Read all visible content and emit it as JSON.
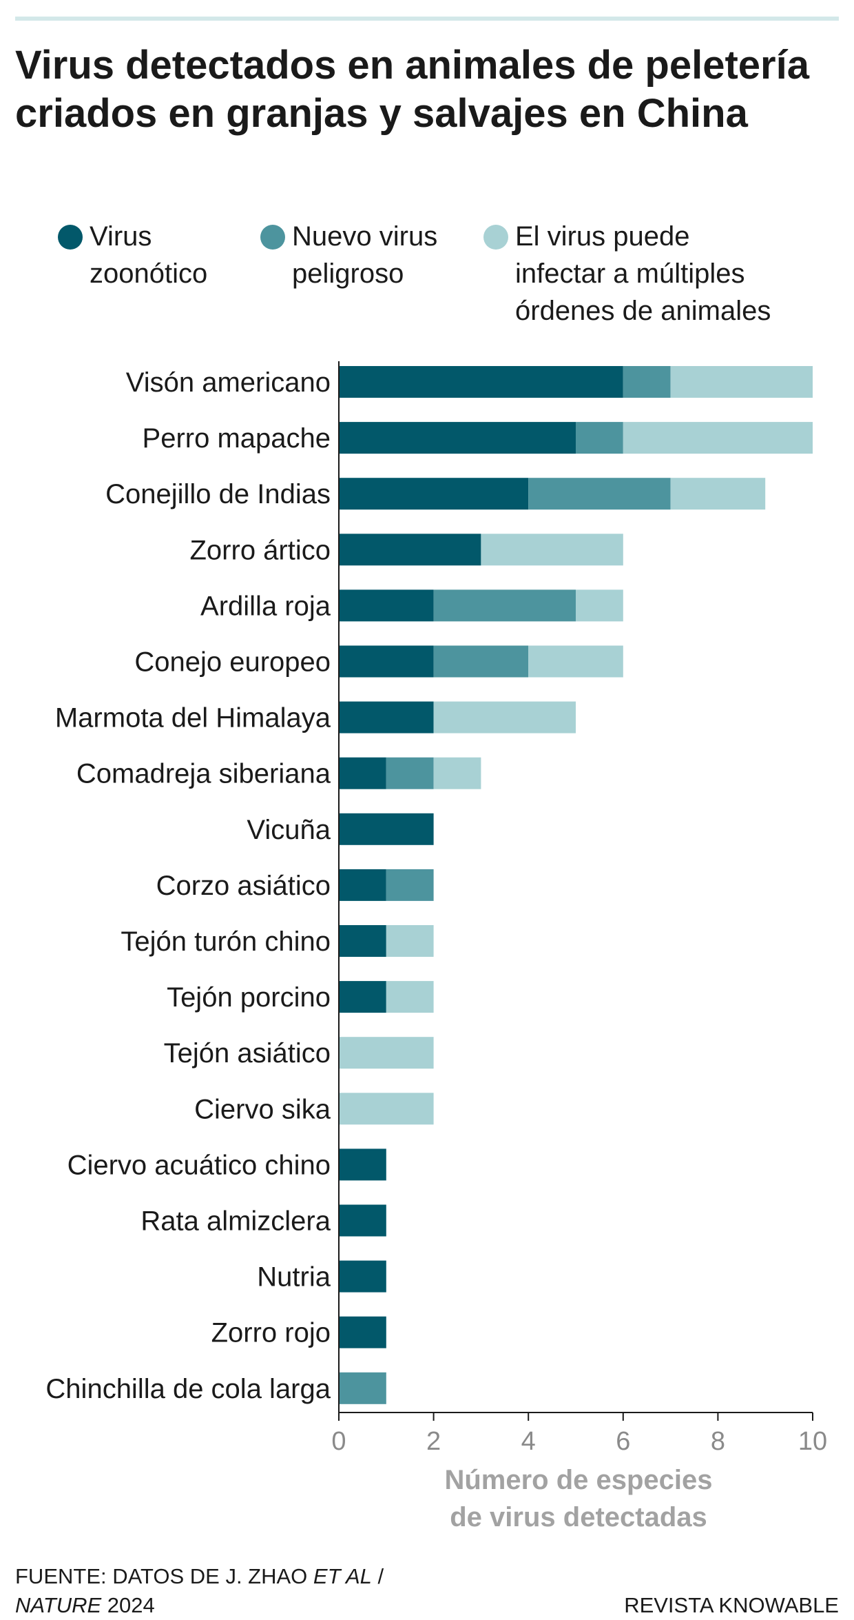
{
  "title": "Virus detectados en animales de peletería criados en granjas y salvajes en China",
  "legend": [
    {
      "label": [
        "Virus",
        "zoonótico"
      ],
      "color": "#02586a"
    },
    {
      "label": [
        "Nuevo virus",
        "peligroso"
      ],
      "color": "#4d949e"
    },
    {
      "label": [
        "El virus puede",
        "infectar a múltiples",
        "órdenes de animales"
      ],
      "color": "#a8d1d4"
    }
  ],
  "footer": {
    "source_prefix": "FUENTE: DATOS DE J. ZHAO ",
    "source_italic_1": "ET AL",
    "source_sep": " /",
    "source_italic_2": "NATURE",
    "source_year": " 2024",
    "publisher": "REVISTA KNOWABLE"
  },
  "chart_data": {
    "type": "bar",
    "orientation": "horizontal",
    "stacked": true,
    "categories": [
      "Visón americano",
      "Perro mapache",
      "Conejillo de Indias",
      "Zorro ártico",
      "Ardilla roja",
      "Conejo europeo",
      "Marmota del Himalaya",
      "Comadreja siberiana",
      "Vicuña",
      "Corzo asiático",
      "Tejón turón chino",
      "Tejón porcino",
      "Tejón asiático",
      "Ciervo sika",
      "Ciervo acuático chino",
      "Rata almizclera",
      "Nutria",
      "Zorro rojo",
      "Chinchilla de cola larga"
    ],
    "series": [
      {
        "name": "Virus zoonótico",
        "color": "#02586a",
        "values": [
          6,
          5,
          4,
          3,
          2,
          2,
          2,
          1,
          2,
          1,
          1,
          1,
          0,
          0,
          1,
          1,
          1,
          1,
          0
        ]
      },
      {
        "name": "Nuevo virus peligroso",
        "color": "#4d949e",
        "values": [
          1,
          1,
          3,
          0,
          3,
          2,
          0,
          1,
          0,
          1,
          0,
          0,
          0,
          0,
          0,
          0,
          0,
          0,
          1
        ]
      },
      {
        "name": "El virus puede infectar a múltiples órdenes de animales",
        "color": "#a8d1d4",
        "values": [
          3,
          4,
          2,
          3,
          1,
          2,
          3,
          1,
          0,
          0,
          1,
          1,
          2,
          2,
          0,
          0,
          0,
          0,
          0
        ]
      }
    ],
    "xlabel": [
      "Número de especies",
      "de virus detectadas"
    ],
    "xlim": [
      0,
      10
    ],
    "xticks": [
      0,
      2,
      4,
      6,
      8,
      10
    ],
    "grid": false
  }
}
